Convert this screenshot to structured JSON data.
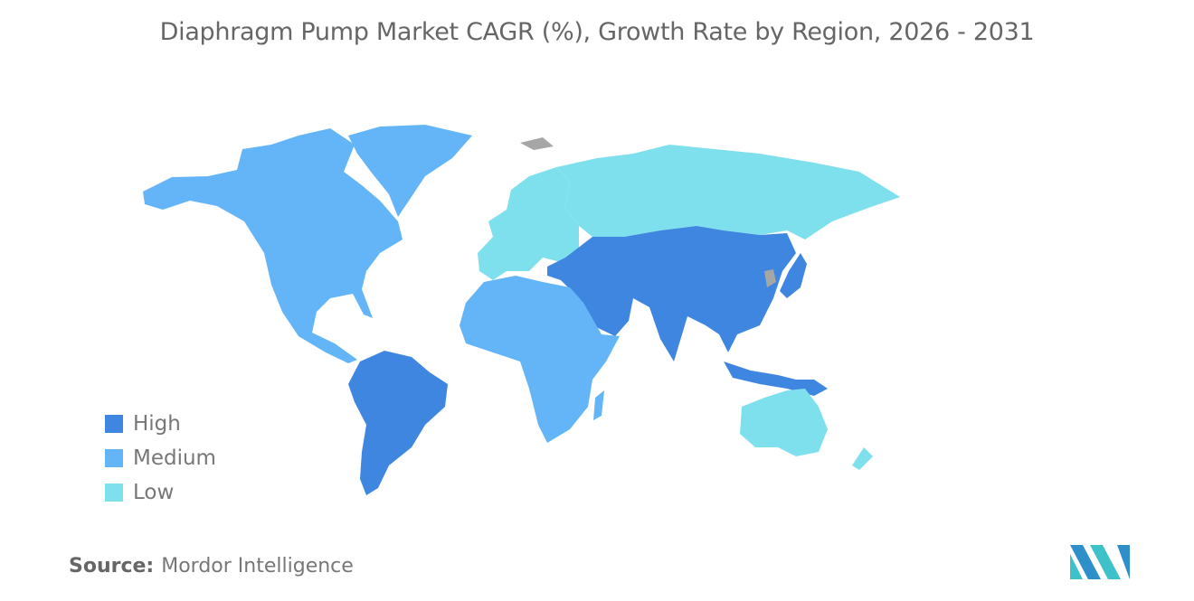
{
  "title": "Diaphragm Pump Market CAGR (%), Growth Rate by Region, 2026 - 2031",
  "legend": [
    {
      "label": "High",
      "color": "#3f86e0"
    },
    {
      "label": "Medium",
      "color": "#63b5f8"
    },
    {
      "label": "Low",
      "color": "#7fe0ed"
    }
  ],
  "regions": {
    "north_america": "Medium",
    "south_america": "High",
    "europe": "Low",
    "russia": "Low",
    "middle_east": "High",
    "asia": "High",
    "africa": "Medium",
    "australia_nz": "Low"
  },
  "no_data_color": "#a6a6a6",
  "source": {
    "label": "Source:",
    "value": "Mordor Intelligence"
  }
}
